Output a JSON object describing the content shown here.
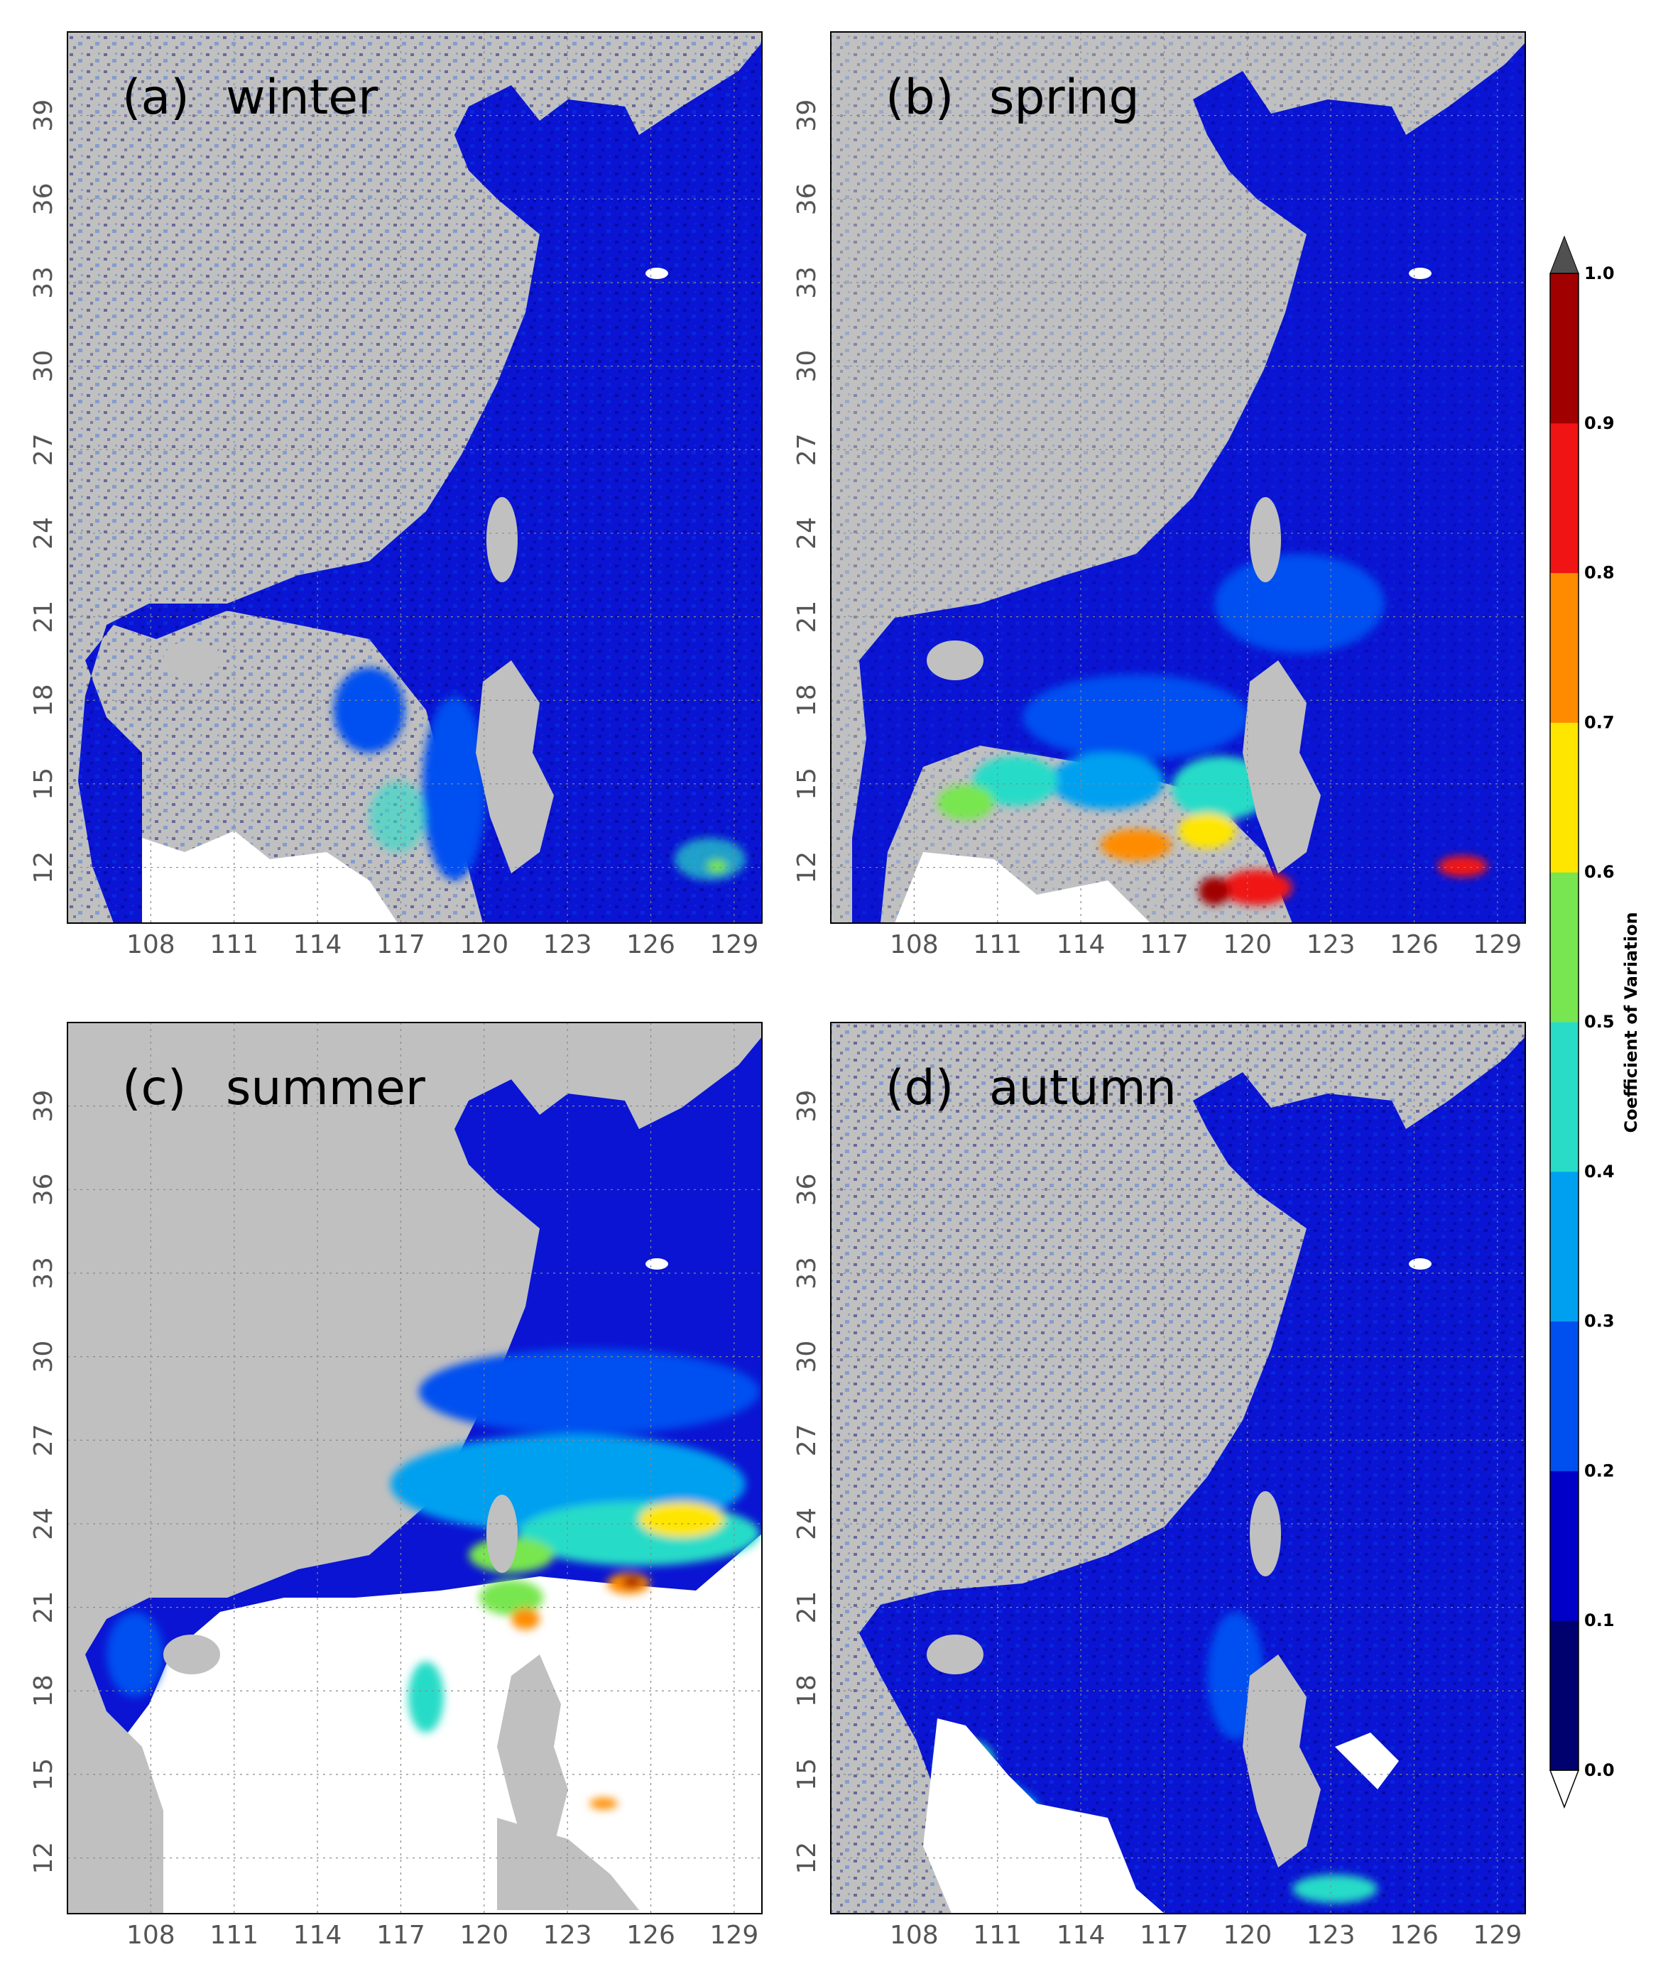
{
  "figure": {
    "x_ticks": [
      "108",
      "111",
      "114",
      "117",
      "120",
      "123",
      "126",
      "129"
    ],
    "y_ticks": [
      "12",
      "15",
      "18",
      "21",
      "24",
      "27",
      "30",
      "33",
      "36",
      "39"
    ],
    "panels": [
      {
        "id": "a",
        "label": "(a)",
        "season": "winter"
      },
      {
        "id": "b",
        "label": "(b)",
        "season": "spring"
      },
      {
        "id": "c",
        "label": "(c)",
        "season": "summer"
      },
      {
        "id": "d",
        "label": "(d)",
        "season": "autumn"
      }
    ],
    "colorbar": {
      "title": "Coefficient of Variation",
      "tick_labels": [
        "0.0",
        "0.1",
        "0.2",
        "0.3",
        "0.4",
        "0.5",
        "0.6",
        "0.7",
        "0.8",
        "0.9",
        "1.0"
      ],
      "colors": [
        "#00006e",
        "#0000c8",
        "#0050f0",
        "#00a0f0",
        "#28dcc8",
        "#78e650",
        "#ffe600",
        "#ff8c00",
        "#f01414",
        "#a00000"
      ],
      "over_color": "#505050",
      "under_color": "#ffffff"
    },
    "land_color": "#c0c0c0",
    "no_data_color": "#ffffff"
  },
  "chart_data": {
    "type": "heatmap",
    "variable": "Coefficient of Variation",
    "x_range": [
      105,
      130
    ],
    "y_range": [
      10,
      42
    ],
    "x_ticks": [
      108,
      111,
      114,
      117,
      120,
      123,
      126,
      129
    ],
    "y_ticks": [
      12,
      15,
      18,
      21,
      24,
      27,
      30,
      33,
      36,
      39
    ],
    "grid": "dotted",
    "color_range": [
      0.0,
      1.0
    ],
    "panels": [
      {
        "label": "(a) winter",
        "dominant_range": [
          0.0,
          0.3
        ]
      },
      {
        "label": "(b) spring",
        "dominant_range": [
          0.1,
          0.3
        ],
        "high_values_south_of": 15
      },
      {
        "label": "(c) summer",
        "dominant_range": [
          0.1,
          0.6
        ],
        "high_values_band": [
          18,
          25
        ]
      },
      {
        "label": "(d) autumn",
        "dominant_range": [
          0.0,
          0.3
        ]
      }
    ]
  }
}
